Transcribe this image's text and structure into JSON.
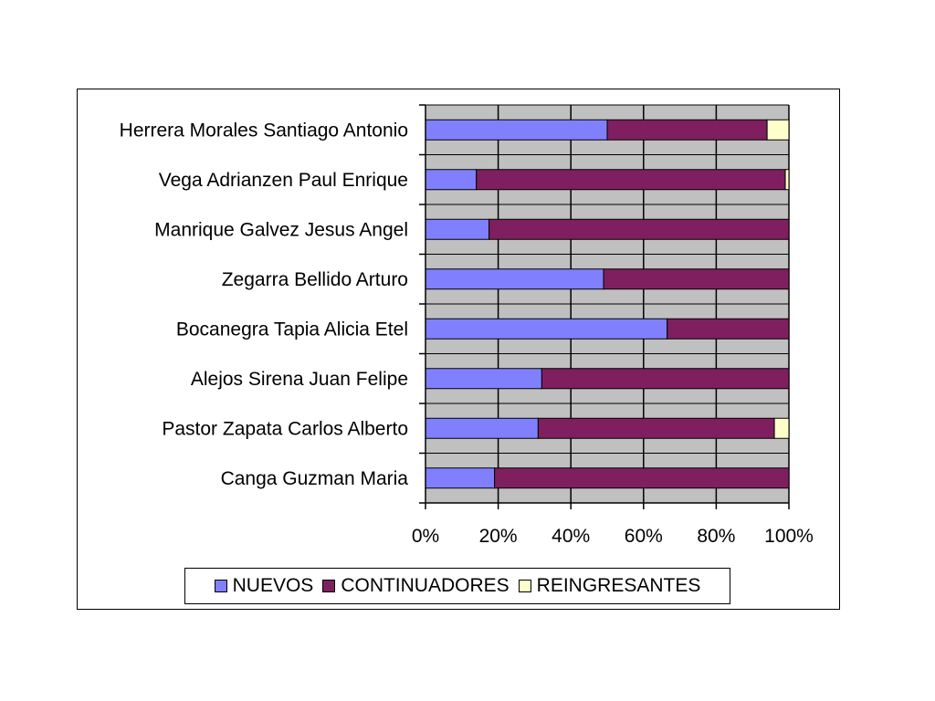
{
  "chart_data": {
    "type": "bar",
    "orientation": "horizontal",
    "stacked": "percent",
    "categories": [
      "Herrera Morales Santiago Antonio",
      "Vega Adrianzen Paul Enrique",
      "Manrique Galvez Jesus Angel",
      "Zegarra Bellido Arturo",
      "Bocanegra Tapia Alicia Etel",
      "Alejos Sirena Juan Felipe",
      "Pastor Zapata Carlos Alberto",
      "Canga Guzman Maria"
    ],
    "series": [
      {
        "name": "NUEVOS",
        "color": "#8080ff",
        "values": [
          50,
          14,
          17.5,
          49,
          66.5,
          32,
          31,
          19
        ]
      },
      {
        "name": "CONTINUADORES",
        "color": "#7f1f5f",
        "values": [
          44,
          85,
          82.5,
          51,
          33.5,
          68,
          65,
          81
        ]
      },
      {
        "name": "REINGRESANTES",
        "color": "#ffffcc",
        "values": [
          6,
          1,
          0,
          0,
          0,
          0,
          4,
          0
        ]
      }
    ],
    "xlim": [
      0,
      100
    ],
    "x_ticks": [
      "0%",
      "20%",
      "40%",
      "60%",
      "80%",
      "100%"
    ],
    "grid": true,
    "plot_background": "#c0c0c0",
    "legend_position": "bottom"
  }
}
